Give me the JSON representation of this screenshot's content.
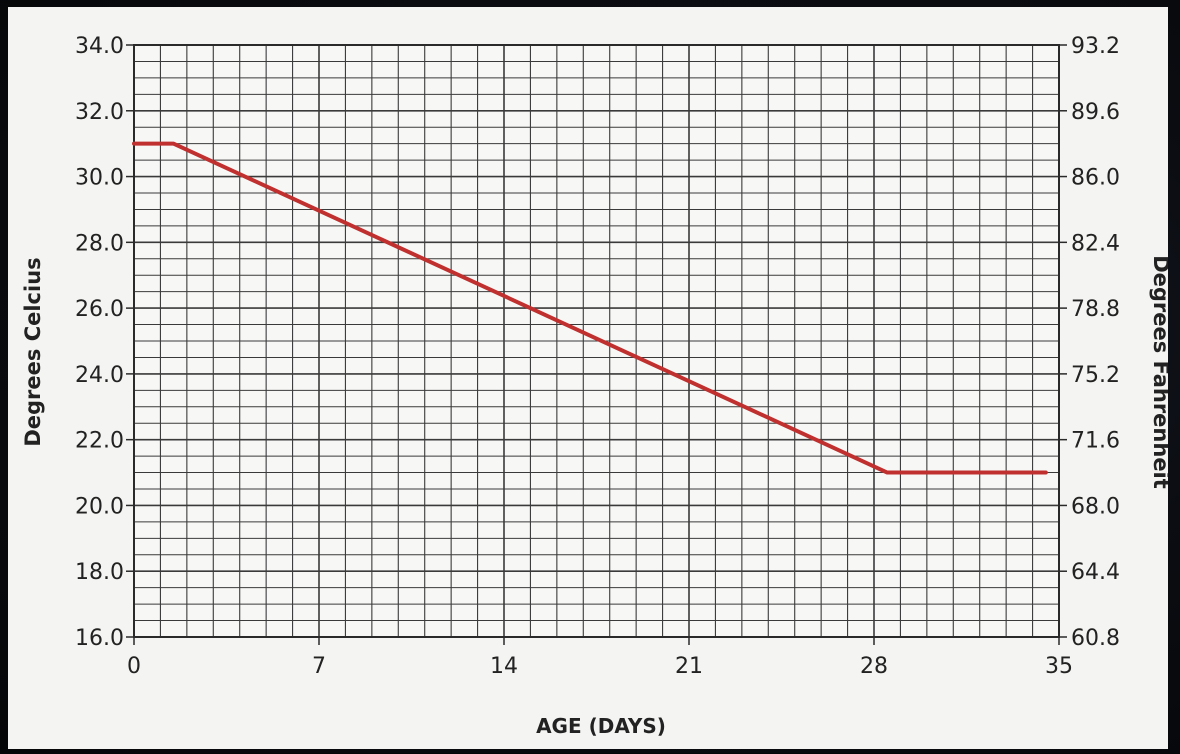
{
  "chart_data": {
    "type": "line",
    "xlabel": "AGE (DAYS)",
    "ylabel": "Degrees Celcius",
    "y2label": "Degrees Fahrenheit",
    "xlim": [
      0,
      35
    ],
    "ylim": [
      16,
      34
    ],
    "x_ticks": [
      "0",
      "7",
      "14",
      "21",
      "28",
      "35"
    ],
    "y_ticks": [
      "16.0",
      "18.0",
      "20.0",
      "22.0",
      "24.0",
      "26.0",
      "28.0",
      "30.0",
      "32.0",
      "34.0"
    ],
    "y2_ticks": [
      "60.8",
      "64.4",
      "68.0",
      "71.6",
      "75.2",
      "78.8",
      "82.4",
      "86.0",
      "89.6",
      "93.2"
    ],
    "grid": true,
    "series": [
      {
        "x": [
          0,
          1.5,
          28.5,
          34.5
        ],
        "y": [
          31,
          31,
          21,
          21
        ]
      }
    ],
    "colors": {
      "line": "#c0302f",
      "grid": "#3a3a3a",
      "background": "#f4f4f2"
    }
  }
}
